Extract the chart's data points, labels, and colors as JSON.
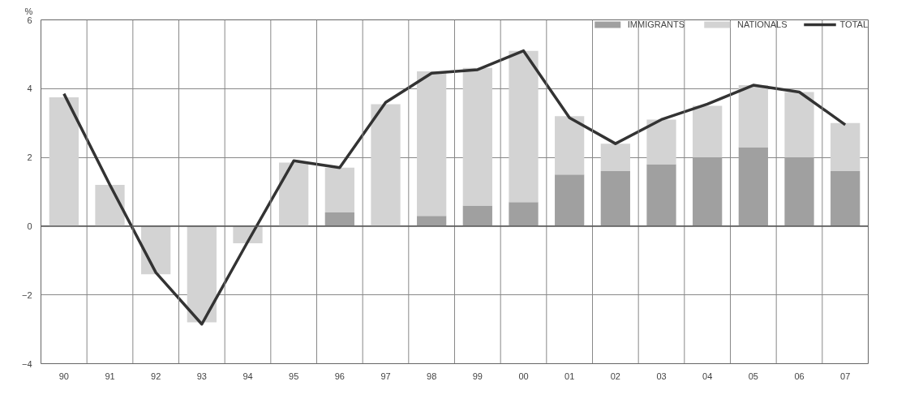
{
  "chart_data": {
    "type": "bar",
    "stacked": true,
    "ylabel": "%",
    "categories": [
      "90",
      "91",
      "92",
      "93",
      "94",
      "95",
      "96",
      "97",
      "98",
      "99",
      "00",
      "01",
      "02",
      "03",
      "04",
      "05",
      "06",
      "07"
    ],
    "series": [
      {
        "name": "IMMIGRANTS",
        "color": "#a0a0a0",
        "values": [
          0,
          0,
          0,
          0,
          0,
          0,
          0.4,
          0,
          0.3,
          0.6,
          0.7,
          1.5,
          1.6,
          1.8,
          2.0,
          2.3,
          2.0,
          1.6
        ]
      },
      {
        "name": "NATIONALS",
        "color": "#d3d3d3",
        "values": [
          3.75,
          1.2,
          -1.4,
          -2.8,
          -0.5,
          1.85,
          1.3,
          3.55,
          4.2,
          4.0,
          4.4,
          1.7,
          0.8,
          1.3,
          1.5,
          1.8,
          1.9,
          1.4
        ]
      },
      {
        "name": "TOTAL",
        "type": "line",
        "color": "#333333",
        "values": [
          3.85,
          1.2,
          -1.35,
          -2.85,
          -0.45,
          1.9,
          1.7,
          3.6,
          4.45,
          4.55,
          5.1,
          3.15,
          2.4,
          3.1,
          3.55,
          4.1,
          3.9,
          2.95
        ]
      }
    ],
    "ylim": [
      -4,
      6
    ],
    "yticks": [
      -4,
      -2,
      0,
      2,
      4,
      6
    ],
    "grid": true,
    "legend": "top right",
    "line_style": "solid",
    "marker": "none"
  }
}
